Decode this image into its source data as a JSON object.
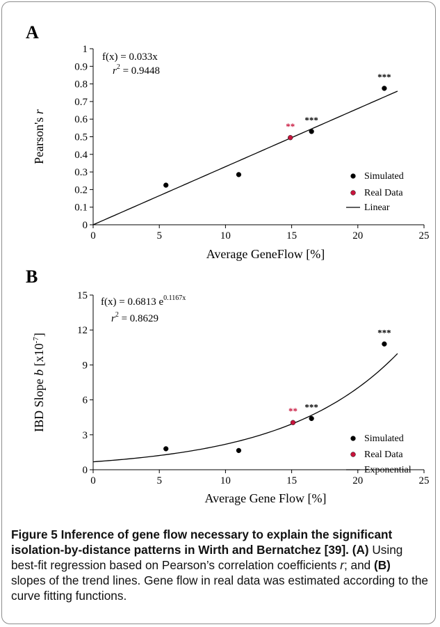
{
  "chart_data": [
    {
      "panel_label": "A",
      "type": "scatter",
      "xlabel": "Average GeneFlow [%]",
      "ylabel_main": "Pearson's ",
      "ylabel_var": "r",
      "xlim": [
        0,
        25
      ],
      "ylim": [
        0,
        1
      ],
      "x_ticks": [
        "0",
        "5",
        "10",
        "15",
        "20",
        "25"
      ],
      "y_ticks": [
        "0",
        "0.1",
        "0.2",
        "0.3",
        "0.4",
        "0.5",
        "0.6",
        "0.7",
        "0.8",
        "0.9",
        "1"
      ],
      "equation_line1": "f(x) = 0.033x",
      "equation_r_var": "r",
      "equation_r_sup": "2",
      "equation_r_value": " = 0.9448",
      "series": [
        {
          "name": "Simulated",
          "color": "#000000",
          "x": [
            5.5,
            11.0,
            16.5,
            22.0
          ],
          "y": [
            0.225,
            0.285,
            0.53,
            0.775
          ]
        },
        {
          "name": "Real Data",
          "color": "#c8143c",
          "x": [
            14.9
          ],
          "y": [
            0.495
          ]
        }
      ],
      "fit": {
        "name": "Linear",
        "kind": "linear",
        "a": 0.033,
        "x_range": [
          0,
          23
        ]
      },
      "annotations": [
        {
          "text": "***",
          "x": 16.5,
          "y": 0.53,
          "color": "#000000"
        },
        {
          "text": "***",
          "x": 22.0,
          "y": 0.775,
          "color": "#000000"
        },
        {
          "text": "**",
          "x": 14.9,
          "y": 0.495,
          "color": "#c8143c"
        }
      ],
      "legend_position": "bottom-right"
    },
    {
      "panel_label": "B",
      "type": "scatter",
      "xlabel": "Average Gene Flow [%]",
      "ylabel_main": "IBD Slope ",
      "ylabel_var": "b",
      "ylabel_rest": " [x10",
      "ylabel_sup": "-7",
      "ylabel_close": "]",
      "xlim": [
        0,
        25
      ],
      "ylim": [
        0,
        15
      ],
      "x_ticks": [
        "0",
        "5",
        "10",
        "15",
        "20",
        "25"
      ],
      "y_ticks": [
        "0",
        "3",
        "6",
        "9",
        "12",
        "15"
      ],
      "equation_line1": "f(x) = 0.6813 e",
      "equation_line1_sup": "0.1167x",
      "equation_r_var": "r",
      "equation_r_sup": "2",
      "equation_r_value": " = 0.8629",
      "series": [
        {
          "name": "Simulated",
          "color": "#000000",
          "x": [
            5.5,
            11.0,
            16.5,
            22.0
          ],
          "y": [
            1.8,
            1.65,
            4.4,
            10.8
          ]
        },
        {
          "name": "Real Data",
          "color": "#c8143c",
          "x": [
            15.1
          ],
          "y": [
            4.05
          ]
        }
      ],
      "fit": {
        "name": "Exponential",
        "kind": "exponential",
        "a": 0.6813,
        "b": 0.1167,
        "x_range": [
          0,
          23
        ]
      },
      "annotations": [
        {
          "text": "***",
          "x": 16.5,
          "y": 4.4,
          "color": "#000000"
        },
        {
          "text": "***",
          "x": 22.0,
          "y": 10.8,
          "color": "#000000"
        },
        {
          "text": "**",
          "x": 15.1,
          "y": 4.05,
          "color": "#c8143c"
        }
      ],
      "legend_position": "bottom-right"
    }
  ],
  "caption": {
    "title": "Figure 5 Inference of gene flow necessary to explain the significant isolation-by-distance patterns in Wirth and Bernatchez [39].",
    "part_a_label": "(A)",
    "part_a_text": " Using best-fit regression based on Pearson’s correlation coefficients ",
    "part_a_var": "r",
    "part_a_tail": "; and ",
    "part_b_label": "(B)",
    "part_b_text": " slopes of the trend lines. Gene flow in real data was estimated according to the curve fitting functions."
  }
}
